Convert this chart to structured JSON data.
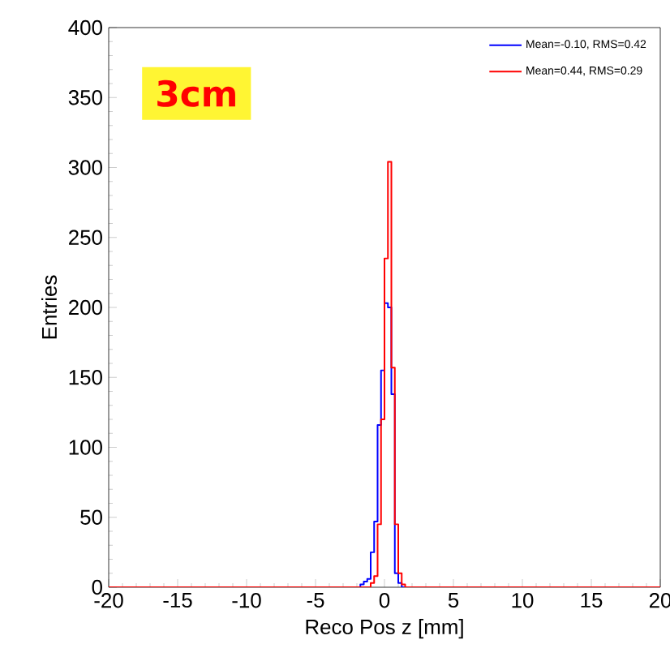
{
  "chart_data": {
    "type": "histogram",
    "xlabel": "Reco Pos z [mm]",
    "ylabel": "Entries",
    "annotations": [
      "3cm"
    ],
    "bins": [
      -20,
      -1.75,
      -1.5,
      -1.25,
      -1.0,
      -0.75,
      -0.5,
      -0.25,
      0,
      0.25,
      0.5,
      0.75,
      1.0,
      1.25,
      1.5,
      20
    ],
    "series": [
      {
        "name": "Mean=-0.10, RMS=0.42",
        "color": "#0000ff",
        "values": [
          0,
          2,
          4,
          6,
          25,
          47,
          116,
          155,
          203,
          200,
          138,
          10,
          3,
          0,
          0
        ]
      },
      {
        "name": "Mean=0.44, RMS=0.29",
        "color": "#ff0000",
        "values": [
          0,
          0,
          0,
          0,
          3,
          8,
          45,
          120,
          235,
          304,
          157,
          45,
          10,
          2,
          0
        ]
      }
    ],
    "xlim": [
      -20,
      20
    ],
    "ylim": [
      0,
      400
    ],
    "xticks": [
      -20,
      -15,
      -10,
      -5,
      0,
      5,
      10,
      15,
      20
    ],
    "yticks": [
      0,
      50,
      100,
      150,
      200,
      250,
      300,
      350,
      400
    ],
    "grid": false,
    "legend": "top right"
  }
}
